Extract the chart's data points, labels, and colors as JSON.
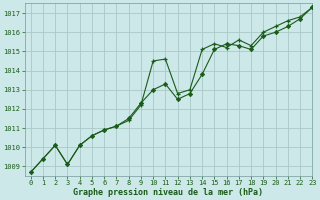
{
  "title": "Graphe pression niveau de la mer (hPa)",
  "bg_color": "#cce8e8",
  "grid_color": "#aac8c8",
  "line_color": "#1a5c1a",
  "xlim": [
    -0.5,
    23
  ],
  "ylim": [
    1008.5,
    1017.5
  ],
  "yticks": [
    1009,
    1010,
    1011,
    1012,
    1013,
    1014,
    1015,
    1016,
    1017
  ],
  "xticks": [
    0,
    1,
    2,
    3,
    4,
    5,
    6,
    7,
    8,
    9,
    10,
    11,
    12,
    13,
    14,
    15,
    16,
    17,
    18,
    19,
    20,
    21,
    22,
    23
  ],
  "series_upper_x": [
    0,
    1,
    2,
    3,
    4,
    5,
    6,
    7,
    8,
    9,
    10,
    11,
    12,
    13,
    14,
    15,
    16,
    17,
    18,
    19,
    20,
    21,
    22,
    23
  ],
  "series_upper_y": [
    1008.7,
    1009.4,
    1010.1,
    1009.1,
    1010.1,
    1010.6,
    1010.9,
    1011.1,
    1011.4,
    1012.2,
    1014.5,
    1014.6,
    1012.8,
    1013.0,
    1015.1,
    1015.4,
    1015.2,
    1015.6,
    1015.3,
    1016.0,
    1016.3,
    1016.6,
    1016.8,
    1017.3
  ],
  "series_lower_x": [
    0,
    1,
    2,
    3,
    4,
    5,
    6,
    7,
    8,
    9,
    10,
    11,
    12,
    13,
    14,
    15,
    16,
    17,
    18,
    19,
    20,
    21,
    22,
    23
  ],
  "series_lower_y": [
    1008.7,
    1009.4,
    1010.1,
    1009.1,
    1010.1,
    1010.6,
    1010.9,
    1011.1,
    1011.5,
    1012.3,
    1013.0,
    1013.3,
    1012.5,
    1012.8,
    1013.8,
    1015.1,
    1015.4,
    1015.3,
    1015.1,
    1015.8,
    1016.0,
    1016.3,
    1016.7,
    1017.3
  ]
}
